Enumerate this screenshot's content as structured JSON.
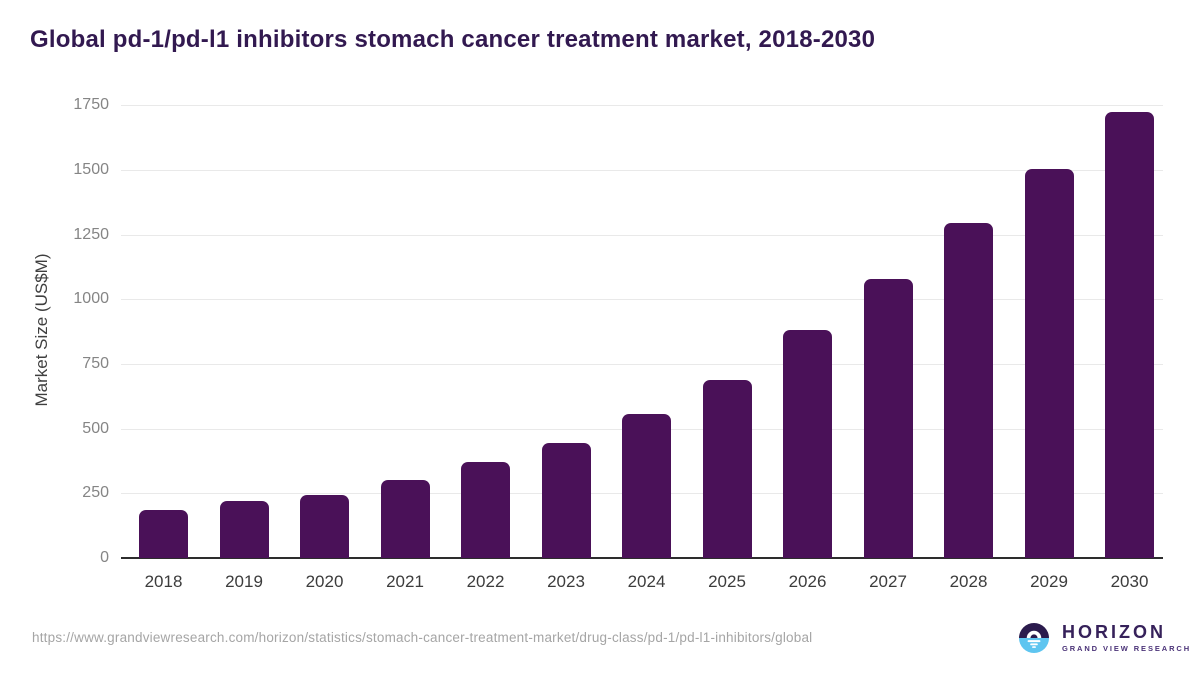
{
  "title": "Global pd-1/pd-l1 inhibitors stomach cancer treatment market, 2018-2030",
  "chart_data": {
    "type": "bar",
    "categories": [
      "2018",
      "2019",
      "2020",
      "2021",
      "2022",
      "2023",
      "2024",
      "2025",
      "2026",
      "2027",
      "2028",
      "2029",
      "2030"
    ],
    "values": [
      185,
      220,
      245,
      300,
      370,
      445,
      555,
      690,
      880,
      1080,
      1295,
      1505,
      1725
    ],
    "title": "Global pd-1/pd-l1 inhibitors stomach cancer treatment market, 2018-2030",
    "xlabel": "",
    "ylabel": "Market Size (US$M)",
    "ylim": [
      0,
      1750
    ],
    "yticks": [
      0,
      250,
      500,
      750,
      1000,
      1250,
      1500,
      1750
    ],
    "grid": true,
    "legend": false,
    "bar_color": "#4a1158"
  },
  "footer": {
    "source_url": "https://www.grandviewresearch.com/horizon/statistics/stomach-cancer-treatment-market/drug-class/pd-1/pd-l1-inhibitors/global",
    "logo": {
      "name": "HORIZON",
      "subtitle": "GRAND VIEW RESEARCH"
    }
  },
  "colors": {
    "bar": "#4a1158",
    "title_text": "#321950",
    "axis_label_text": "#3c3c3c",
    "tick_text": "#858585",
    "gridline": "#e9e9e9",
    "axis_line": "#2d2d2d",
    "url_text": "#a5a5a5",
    "logo_dark_purple": "#2b1b4d",
    "logo_light_blue": "#5ec5f0",
    "logo_text_purple": "#36215a"
  }
}
